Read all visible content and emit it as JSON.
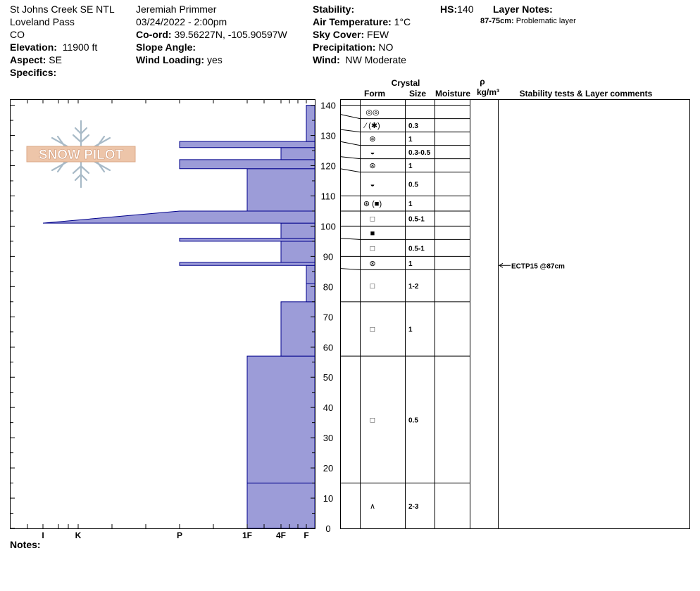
{
  "site": {
    "name": "St Johns Creek SE NTL",
    "area": "Loveland Pass",
    "state": "CO",
    "elevation_label": "Elevation:",
    "elevation": "11900 ft",
    "aspect_label": "Aspect:",
    "aspect": "SE",
    "specifics_label": "Specifics:"
  },
  "observer": {
    "name": "Jeremiah Primmer",
    "datetime": "03/24/2022 - 2:00pm",
    "coord_label": "Co-ord:",
    "coord": "39.56227N, -105.90597W",
    "slope_label": "Slope Angle:",
    "wind_loading_label": "Wind Loading:",
    "wind_loading": "yes"
  },
  "conditions": {
    "stability_label": "Stability:",
    "air_temp_label": "Air Temperature:",
    "air_temp": "1°C",
    "sky_label": "Sky Cover:",
    "sky": "FEW",
    "precip_label": "Precipitation:",
    "precip": "NO",
    "wind_label": "Wind:",
    "wind": "NW Moderate"
  },
  "hs": {
    "label": "HS:",
    "value": "140"
  },
  "layer_notes": {
    "label": "Layer Notes:",
    "items": [
      {
        "range": "87-75cm:",
        "text": "Problematic layer"
      }
    ]
  },
  "logo_text": "SNOW PILOT",
  "notes_label": "Notes:",
  "colors": {
    "hardness_fill": "#9c9cd8",
    "hardness_stroke": "#00008b",
    "grid": "#000000"
  },
  "chart_data": {
    "type": "snow-profile",
    "ylim": [
      0,
      142
    ],
    "y_ticks": [
      0,
      10,
      20,
      30,
      40,
      50,
      60,
      70,
      80,
      90,
      100,
      110,
      120,
      130,
      140
    ],
    "hardness_ticks": [
      "I",
      "K",
      "P",
      "1F",
      "4F",
      "F"
    ],
    "hardness_scale": [
      "I",
      "K",
      "P",
      "1F",
      "4F",
      "F"
    ],
    "hardness_profile": [
      {
        "bottom": 0,
        "top": 15,
        "hardness": "1F"
      },
      {
        "bottom": 15,
        "top": 57,
        "hardness": "1F"
      },
      {
        "bottom": 57,
        "top": 75,
        "hardness": "4F"
      },
      {
        "bottom": 75,
        "top": 81,
        "hardness": "F"
      },
      {
        "bottom": 81,
        "top": 87,
        "hardness": "F"
      },
      {
        "bottom": 87,
        "top": 88,
        "hardness": "P"
      },
      {
        "bottom": 88,
        "top": 95,
        "hardness": "4F"
      },
      {
        "bottom": 95,
        "top": 96,
        "hardness": "P"
      },
      {
        "bottom": 96,
        "top": 101,
        "hardness": "4F"
      },
      {
        "bottom": 101,
        "top": 105,
        "hardness": "I",
        "top_hardness": "P"
      },
      {
        "bottom": 105,
        "top": 119,
        "hardness": "1F"
      },
      {
        "bottom": 119,
        "top": 122,
        "hardness": "P"
      },
      {
        "bottom": 122,
        "top": 126,
        "hardness": "4F"
      },
      {
        "bottom": 126,
        "top": 128,
        "hardness": "P"
      },
      {
        "bottom": 128,
        "top": 140,
        "hardness": "F"
      }
    ],
    "columns": {
      "crystal": "Crystal",
      "form": "Form",
      "size": "Size",
      "moisture": "Moisture",
      "rho": "ρ",
      "density": "kg/m³",
      "comments": "Stability tests & Layer comments"
    },
    "layers": [
      {
        "bottom": 137,
        "top": 140,
        "form": "◎◎",
        "size": ""
      },
      {
        "bottom": 132,
        "top": 137,
        "form": "⁄ (✱)",
        "size": "0.3"
      },
      {
        "bottom": 128,
        "top": 132,
        "form": "⊛",
        "size": "1"
      },
      {
        "bottom": 123,
        "top": 128,
        "form": "◒",
        "size": "0.3-0.5"
      },
      {
        "bottom": 119,
        "top": 123,
        "form": "⊛",
        "size": "1"
      },
      {
        "bottom": 110,
        "top": 119,
        "form": "◒",
        "size": "0.5"
      },
      {
        "bottom": 105,
        "top": 110,
        "form": "⊛ (■)",
        "size": "1"
      },
      {
        "bottom": 100,
        "top": 105,
        "form": "□",
        "size": "0.5-1"
      },
      {
        "bottom": 96,
        "top": 100,
        "form": "■",
        "size": ""
      },
      {
        "bottom": 90,
        "top": 96,
        "form": "□",
        "size": "0.5-1"
      },
      {
        "bottom": 86,
        "top": 90,
        "form": "⊛",
        "size": "1"
      },
      {
        "bottom": 75,
        "top": 86,
        "form": "□",
        "size": "1-2"
      },
      {
        "bottom": 57,
        "top": 75,
        "form": "□",
        "size": "1"
      },
      {
        "bottom": 15,
        "top": 57,
        "form": "□",
        "size": "0.5"
      },
      {
        "bottom": 0,
        "top": 15,
        "form": "∧",
        "size": "2-3"
      }
    ],
    "tests": [
      {
        "height": 87,
        "text": "ECTP15 @87cm"
      }
    ]
  }
}
